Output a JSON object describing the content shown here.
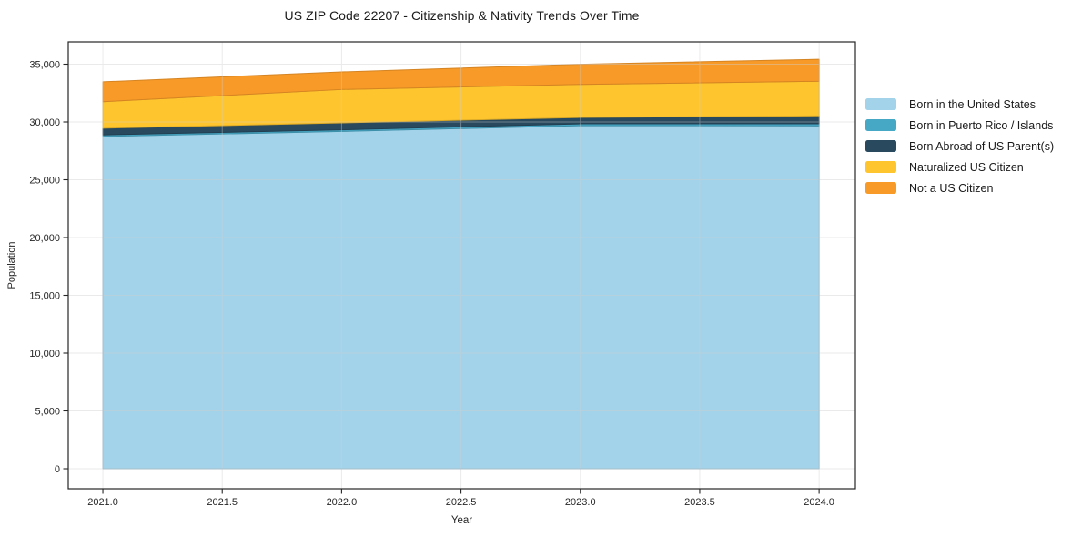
{
  "title": "US ZIP Code 22207 - Citizenship & Nativity Trends Over Time",
  "chart_data": {
    "type": "area",
    "stacked": true,
    "title": "US ZIP Code 22207 - Citizenship & Nativity Trends Over Time",
    "xlabel": "Year",
    "ylabel": "Population",
    "x": [
      2021,
      2022,
      2023,
      2024
    ],
    "series": [
      {
        "name": "Born in the United States",
        "color": "#a3d3ea",
        "values": [
          28750,
          29180,
          29680,
          29660
        ]
      },
      {
        "name": "Born in Puerto Rico / Islands",
        "color": "#47a8c6",
        "values": [
          130,
          140,
          160,
          180
        ]
      },
      {
        "name": "Born Abroad of US Parent(s)",
        "color": "#28495e",
        "values": [
          580,
          600,
          550,
          690
        ]
      },
      {
        "name": "Naturalized US Citizen",
        "color": "#fec52f",
        "values": [
          2290,
          2890,
          2860,
          2990
        ]
      },
      {
        "name": "Not a US Citizen",
        "color": "#f89a28",
        "values": [
          1720,
          1520,
          1740,
          1900
        ]
      }
    ],
    "x_ticks": [
      2021.0,
      2021.5,
      2022.0,
      2022.5,
      2023.0,
      2023.5,
      2024.0
    ],
    "x_tick_labels": [
      "2021.0",
      "2021.5",
      "2022.0",
      "2022.5",
      "2023.0",
      "2023.5",
      "2024.0"
    ],
    "y_ticks": [
      0,
      5000,
      10000,
      15000,
      20000,
      25000,
      30000,
      35000
    ],
    "y_tick_labels": [
      "0",
      "5,000",
      "10,000",
      "15,000",
      "20,000",
      "25,000",
      "30,000",
      "35,000"
    ],
    "xlim": [
      2020.855,
      2024.152
    ],
    "ylim": [
      -1732,
      36929
    ],
    "grid": true,
    "legend_position": "right",
    "axis_color": "#262626",
    "grid_color": "#cfcfcf"
  }
}
